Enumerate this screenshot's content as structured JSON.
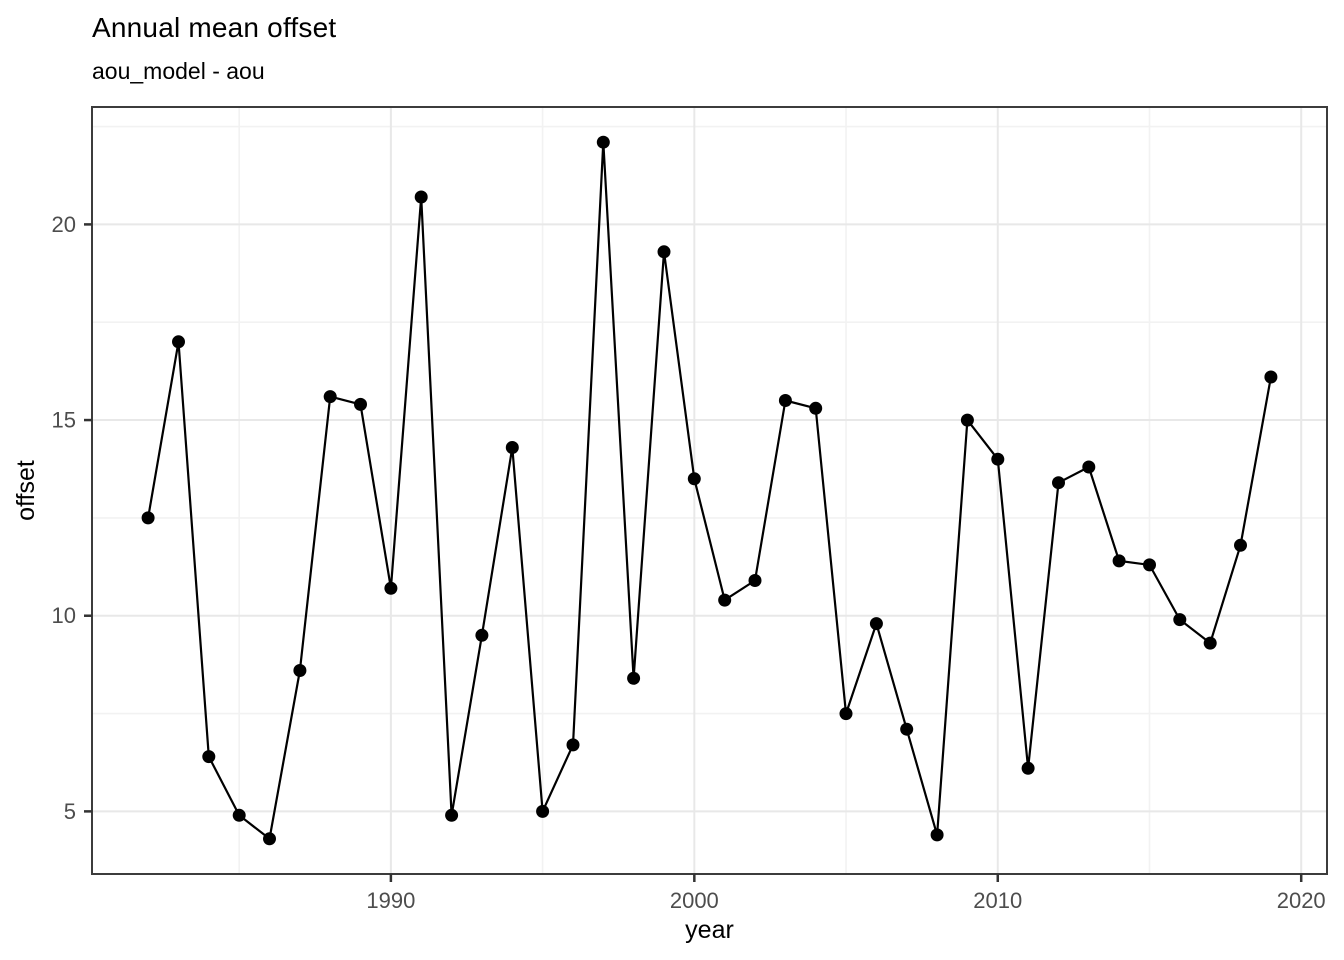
{
  "chart_data": {
    "type": "line",
    "title": "Annual mean offset",
    "subtitle": "aou_model - aou",
    "xlabel": "year",
    "ylabel": "offset",
    "legend": "none",
    "marker": "point",
    "grid": "major+minor",
    "x": [
      1982,
      1983,
      1984,
      1985,
      1986,
      1987,
      1988,
      1989,
      1990,
      1991,
      1992,
      1993,
      1994,
      1995,
      1996,
      1997,
      1998,
      1999,
      2000,
      2001,
      2002,
      2003,
      2004,
      2005,
      2006,
      2007,
      2008,
      2009,
      2010,
      2011,
      2012,
      2013,
      2014,
      2015,
      2016,
      2017,
      2018,
      2019
    ],
    "y": [
      12.5,
      17.0,
      6.4,
      4.9,
      4.3,
      8.6,
      15.6,
      15.4,
      10.7,
      20.7,
      4.9,
      9.5,
      14.3,
      5.0,
      6.7,
      22.1,
      8.4,
      19.3,
      13.5,
      10.4,
      10.9,
      15.5,
      15.3,
      7.5,
      9.8,
      7.1,
      4.4,
      15.0,
      14.0,
      6.1,
      13.4,
      13.8,
      11.4,
      11.3,
      9.9,
      9.3,
      11.8,
      16.1
    ],
    "x_ticks_major": [
      1990,
      2000,
      2010,
      2020
    ],
    "x_ticks_minor": [
      1985,
      1995,
      2005,
      2015
    ],
    "y_ticks_major": [
      5,
      10,
      15,
      20
    ],
    "y_ticks_minor": [
      7.5,
      12.5,
      17.5,
      22.5
    ],
    "xlim": [
      1980.15,
      2020.85
    ],
    "ylim": [
      3.4,
      23.0
    ],
    "colors": {
      "line": "#000000",
      "point": "#000000",
      "grid_major": "#e8e8e8",
      "grid_minor": "#f2f2f2",
      "panel_border": "#3c3c3c",
      "tick_mark": "#333333",
      "tick_label": "#4d4d4d",
      "axis_title": "#000000",
      "background": "#ffffff"
    }
  }
}
